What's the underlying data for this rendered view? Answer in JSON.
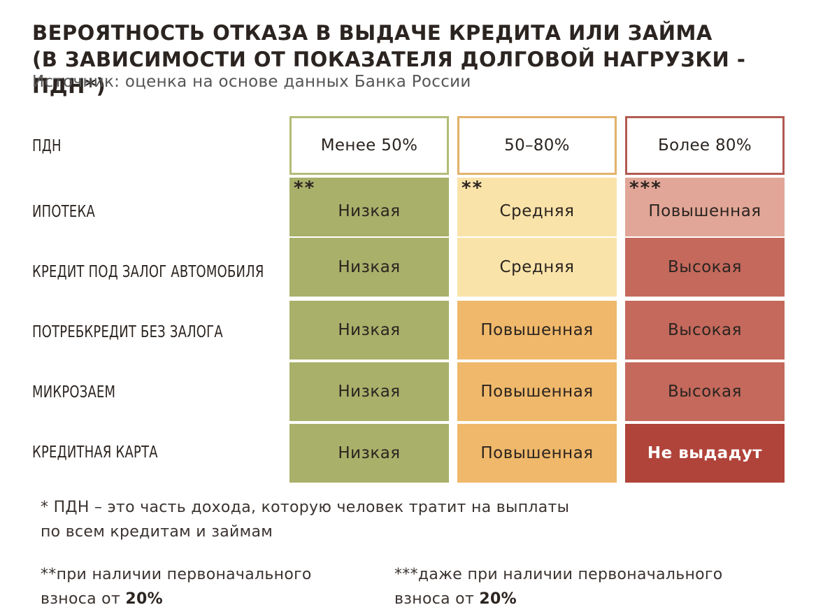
{
  "title_line1": "ВЕРОЯТНОСТЬ ОТКАЗА В ВЫДАЧЕ КРЕДИТА ИЛИ ЗАЙМА",
  "title_line2": "(В ЗАВИСИМОСТИ ОТ ПОКАЗАТЕЛЯ ДОЛГОВОЙ НАГРУЗКИ - ПДН*)",
  "subtitle": "Источник: оценка на основе данных Банка России",
  "header_label": "ПДН",
  "columns": [
    {
      "label": "Менее 50%",
      "border": "#b4bc78"
    },
    {
      "label": "50–80%",
      "border": "#e2b26a"
    },
    {
      "label": "Более 80%",
      "border": "#b25a52"
    }
  ],
  "rows": [
    {
      "label": "ИПОТЕКА",
      "cells": [
        {
          "text": "Низкая",
          "stars": "**",
          "bg": "#a8b06a"
        },
        {
          "text": "Средняя",
          "stars": "**",
          "bg": "#f9e3a9"
        },
        {
          "text": "Повышенная",
          "stars": "***",
          "bg": "#e1a697"
        }
      ]
    },
    {
      "label": "КРЕДИТ ПОД ЗАЛОГ АВТОМОБИЛЯ",
      "cells": [
        {
          "text": "Низкая",
          "stars": "",
          "bg": "#a8b06a"
        },
        {
          "text": "Средняя",
          "stars": "",
          "bg": "#f9e3a9"
        },
        {
          "text": "Высокая",
          "stars": "",
          "bg": "#c4695c"
        }
      ]
    },
    {
      "label": "ПОТРЕБКРЕДИТ БЕЗ ЗАЛОГА",
      "cells": [
        {
          "text": "Низкая",
          "stars": "",
          "bg": "#a8b06a"
        },
        {
          "text": "Повышенная",
          "stars": "",
          "bg": "#efb86a"
        },
        {
          "text": "Высокая",
          "stars": "",
          "bg": "#c4695c"
        }
      ]
    },
    {
      "label": "МИКРОЗАЕМ",
      "cells": [
        {
          "text": "Низкая",
          "stars": "",
          "bg": "#a8b06a"
        },
        {
          "text": "Повышенная",
          "stars": "",
          "bg": "#efb86a"
        },
        {
          "text": "Высокая",
          "stars": "",
          "bg": "#c4695c"
        }
      ]
    },
    {
      "label": "КРЕДИТНАЯ КАРТА",
      "cells": [
        {
          "text": "Низкая",
          "stars": "",
          "bg": "#a8b06a"
        },
        {
          "text": "Повышенная",
          "stars": "",
          "bg": "#efb86a"
        },
        {
          "text": "Не выдадут",
          "stars": "",
          "bg": "#b0433a",
          "strong": true
        }
      ]
    }
  ],
  "footnote1_line1": "* ПДН – это часть дохода, которую человек тратит на выплаты",
  "footnote1_line2": "по всем кредитам и займам",
  "footnote2_line1": "**при наличии первоначального",
  "footnote2_line2_prefix": "взноса от ",
  "footnote2_line2_value": "20%",
  "footnote3_line1": "***даже при наличии первоначального",
  "footnote3_line2_prefix": "взноса от ",
  "footnote3_line2_value": "20%",
  "chart_data": {
    "type": "table",
    "title": "ВЕРОЯТНОСТЬ ОТКАЗА В ВЫДАЧЕ КРЕДИТА ИЛИ ЗАЙМА (В ЗАВИСИМОСТИ ОТ ПОКАЗАТЕЛЯ ДОЛГОВОЙ НАГРУЗКИ - ПДН*)",
    "subtitle": "Источник: оценка на основе данных Банка России",
    "columns": [
      "Менее 50%",
      "50–80%",
      "Более 80%"
    ],
    "rows": [
      "ИПОТЕКА",
      "КРЕДИТ ПОД ЗАЛОГ АВТОМОБИЛЯ",
      "ПОТРЕБКРЕДИТ БЕЗ ЗАЛОГА",
      "МИКРОЗАЕМ",
      "КРЕДИТНАЯ КАРТА"
    ],
    "values": [
      [
        "Низкая",
        "Средняя",
        "Повышенная"
      ],
      [
        "Низкая",
        "Средняя",
        "Высокая"
      ],
      [
        "Низкая",
        "Повышенная",
        "Высокая"
      ],
      [
        "Низкая",
        "Повышенная",
        "Высокая"
      ],
      [
        "Низкая",
        "Повышенная",
        "Не выдадут"
      ]
    ]
  }
}
